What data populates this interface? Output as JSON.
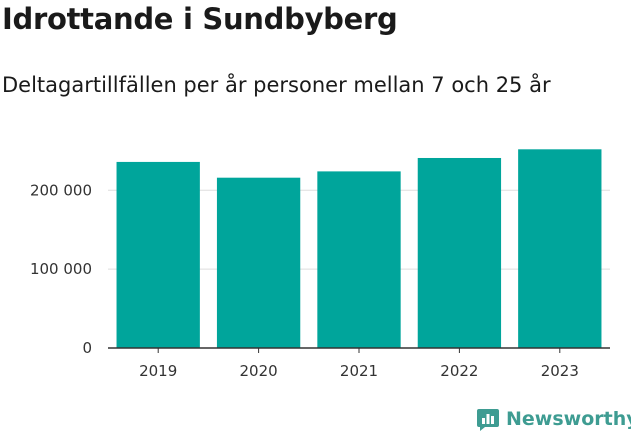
{
  "chart_data": {
    "type": "bar",
    "title": "Idrottande i Sundbyberg",
    "subtitle": "Deltagartillfällen per år personer mellan 7 och 25 år",
    "categories": [
      "2019",
      "2020",
      "2021",
      "2022",
      "2023"
    ],
    "values": [
      236000,
      216000,
      224000,
      241000,
      252000
    ],
    "yticks": [
      0,
      100000,
      200000
    ],
    "ytick_labels": [
      "0",
      "100 000",
      "200 000"
    ],
    "ylim": [
      0,
      260000
    ],
    "xlabel": "",
    "ylabel": "",
    "grid": true,
    "bar_color": "#00a59b",
    "grid_color": "#dddddd"
  },
  "branding": {
    "name": "Newsworthy",
    "icon": "bar-chart-logo-icon",
    "color": "#3e9c92"
  }
}
